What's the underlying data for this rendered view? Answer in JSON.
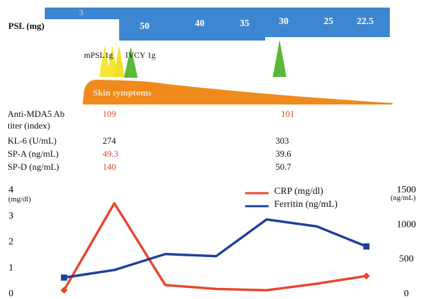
{
  "psl": {
    "label": "PSL (mg)",
    "doses": [
      "3",
      "50",
      "40",
      "35",
      "30",
      "25",
      "22.5"
    ],
    "color": "#3d86d2"
  },
  "treatments": {
    "mpsl_label": "mPSL1g",
    "ivcy_label": "IVCY 1g",
    "mpsl_color": "#f5e634",
    "ivcy_color": "#5cb83a"
  },
  "skin": {
    "label": "Skin symptoms",
    "color": "#f08a1c"
  },
  "labs": [
    {
      "label": "Anti-MDA5 Ab\ntiter (index)",
      "before": "109",
      "after": "101",
      "before_red": true,
      "after_red": true
    },
    {
      "label": "KL-6 (U/mL)",
      "before": "274",
      "after": "303",
      "before_red": false,
      "after_red": false
    },
    {
      "label": "SP-A (ng/mL)",
      "before": "49.3",
      "after": "39.6",
      "before_red": true,
      "after_red": false
    },
    {
      "label": "SP-D (ng/mL)",
      "before": "140",
      "after": "50.7",
      "before_red": true,
      "after_red": false
    }
  ],
  "chart_data": {
    "type": "line",
    "left_axis": {
      "unit": "(mg/dl)",
      "ticks": [
        "4",
        "3",
        "2",
        "1",
        "0"
      ],
      "range": [
        0,
        4
      ]
    },
    "right_axis": {
      "unit": "(ng/mL)",
      "ticks": [
        "1500",
        "1000",
        "500",
        "0"
      ],
      "range": [
        0,
        1500
      ]
    },
    "series": [
      {
        "name": "CRP (mg/dl)",
        "axis": "left",
        "color": "#e8452c",
        "x": [
          0,
          1,
          2,
          3,
          4,
          5,
          6
        ],
        "values": [
          0.1,
          3.45,
          0.3,
          0.15,
          0.1,
          0.35,
          0.65
        ]
      },
      {
        "name": "Ferritin (ng/mL)",
        "axis": "right",
        "color": "#1f3f9a",
        "x": [
          0,
          1,
          2,
          3,
          4,
          5,
          6
        ],
        "values": [
          220,
          330,
          560,
          530,
          1060,
          960,
          670
        ]
      }
    ]
  }
}
